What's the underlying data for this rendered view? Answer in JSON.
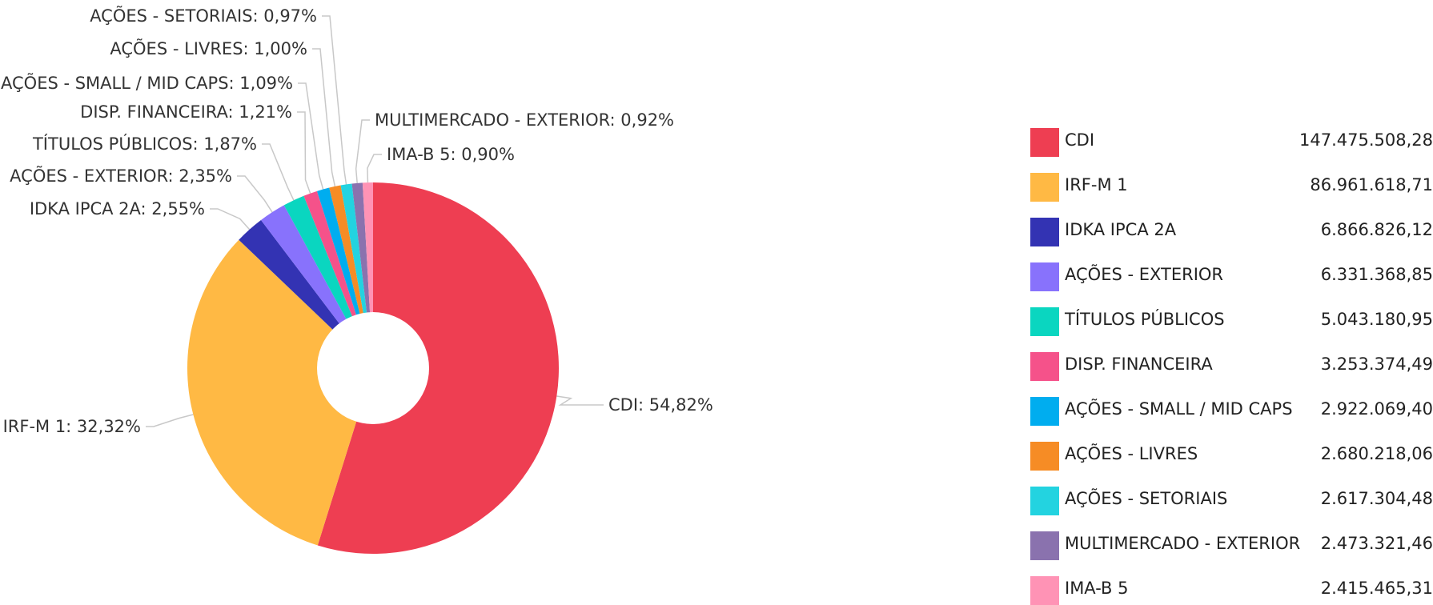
{
  "chart_data": {
    "type": "pie",
    "title": "",
    "donut": true,
    "legend_position": "right",
    "slices": [
      {
        "name": "CDI",
        "percent_label": "54,82%",
        "percent": 54.82,
        "value_label": "147.475.508,28",
        "value": 147475508.28,
        "color": "#EE3E52"
      },
      {
        "name": "IRF-M 1",
        "percent_label": "32,32%",
        "percent": 32.32,
        "value_label": "86.961.618,71",
        "value": 86961618.71,
        "color": "#FFB944"
      },
      {
        "name": "IDKA IPCA 2A",
        "percent_label": "2,55%",
        "percent": 2.55,
        "value_label": "6.866.826,12",
        "value": 6866826.12,
        "color": "#3333B3"
      },
      {
        "name": "AÇÕES - EXTERIOR",
        "percent_label": "2,35%",
        "percent": 2.35,
        "value_label": "6.331.368,85",
        "value": 6331368.85,
        "color": "#8872FC"
      },
      {
        "name": "TÍTULOS PÚBLICOS",
        "percent_label": "1,87%",
        "percent": 1.87,
        "value_label": "5.043.180,95",
        "value": 5043180.95,
        "color": "#0AD6C0"
      },
      {
        "name": "DISP. FINANCEIRA",
        "percent_label": "1,21%",
        "percent": 1.21,
        "value_label": "3.253.374,49",
        "value": 3253374.49,
        "color": "#F5528A"
      },
      {
        "name": "AÇÕES - SMALL / MID CAPS",
        "percent_label": "1,09%",
        "percent": 1.09,
        "value_label": "2.922.069,40",
        "value": 2922069.4,
        "color": "#00ADEF"
      },
      {
        "name": "AÇÕES - LIVRES",
        "percent_label": "1,00%",
        "percent": 1.0,
        "value_label": "2.680.218,06",
        "value": 2680218.06,
        "color": "#F68C25"
      },
      {
        "name": "AÇÕES - SETORIAIS",
        "percent_label": "0,97%",
        "percent": 0.97,
        "value_label": "2.617.304,48",
        "value": 2617304.48,
        "color": "#23D3E0"
      },
      {
        "name": "MULTIMERCADO - EXTERIOR",
        "percent_label": "0,92%",
        "percent": 0.92,
        "value_label": "2.473.321,46",
        "value": 2473321.46,
        "color": "#8A72AE"
      },
      {
        "name": "IMA-B 5",
        "percent_label": "0,90%",
        "percent": 0.9,
        "value_label": "2.415.465,31",
        "value": 2415465.31,
        "color": "#FF93B5"
      }
    ]
  }
}
